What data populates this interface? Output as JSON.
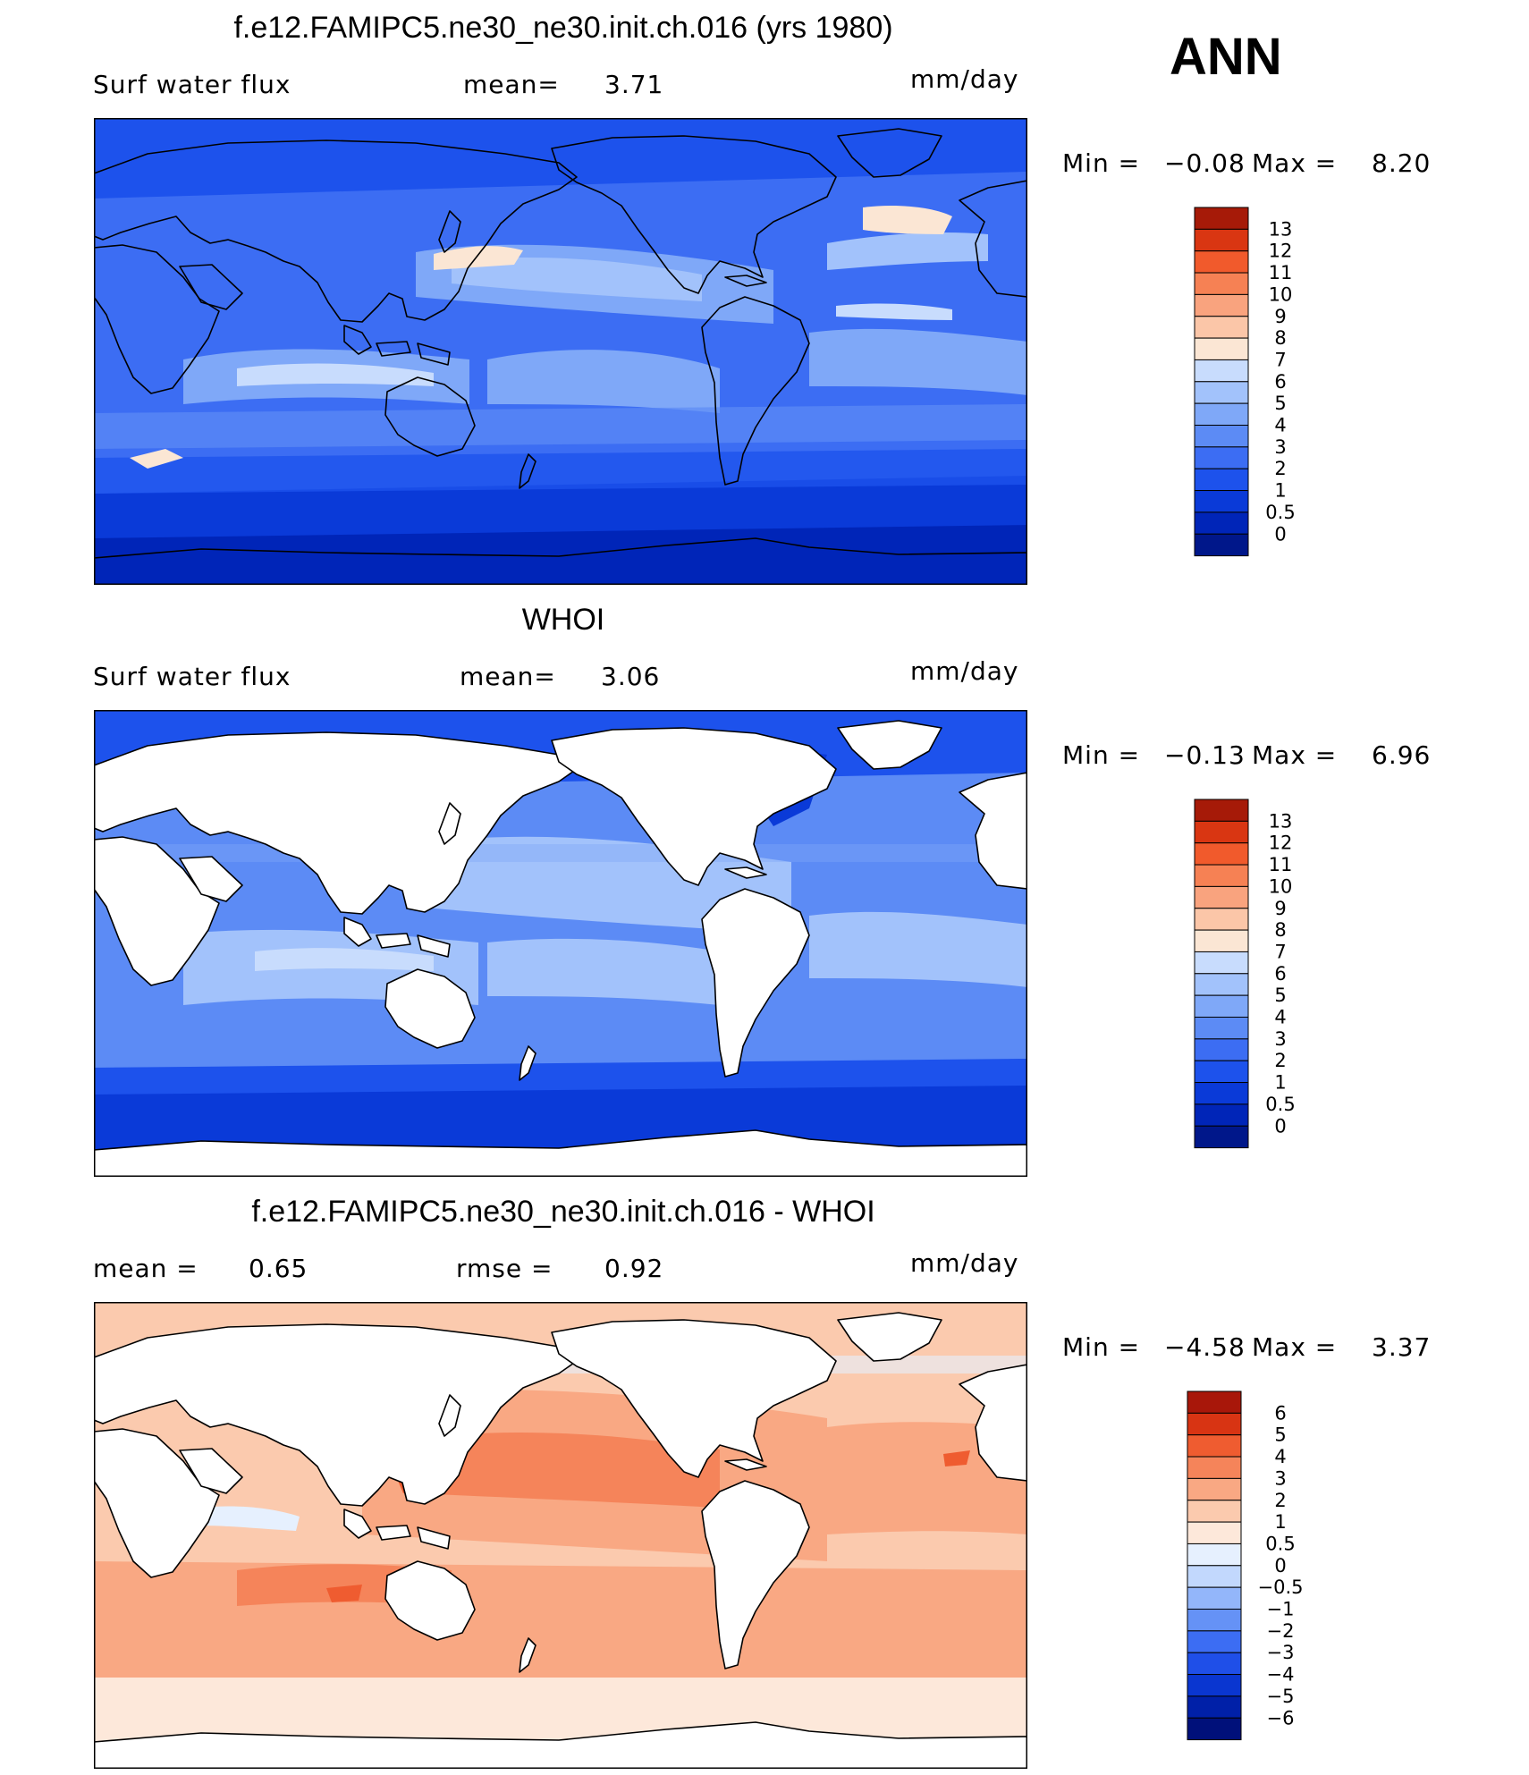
{
  "season": "ANN",
  "colors": {
    "blue_scale": [
      "#00178a",
      "#0025b8",
      "#0a3ad8",
      "#1d52ec",
      "#3c6df3",
      "#5c8bf5",
      "#7fa8f8",
      "#a2c2fb",
      "#c8dcfd",
      "#fbe6d4",
      "#fbc6a8",
      "#f9a37e",
      "#f68154",
      "#f15a2c",
      "#d93612",
      "#a61a08",
      "#6e0606"
    ],
    "diff_scale": [
      "#00107a",
      "#0020a8",
      "#0a36d0",
      "#1f4fe8",
      "#3c6df3",
      "#6592f6",
      "#93b6fa",
      "#c2d8fd",
      "#e6f0fe",
      "#fde8da",
      "#fbcaae",
      "#f9a883",
      "#f5845a",
      "#ef5c30",
      "#d83413",
      "#a8170a",
      "#6b0404"
    ],
    "land": "#ffffff",
    "coast": "#000000"
  },
  "panels": [
    {
      "title": "f.e12.FAMIPC5.ne30_ne30.init.ch.016 (yrs 1980)",
      "left_label": "Surf water flux",
      "mean_label": "mean=",
      "mean_value": "3.71",
      "units": "mm/day",
      "min_label": "Min =",
      "min_value": "−0.08",
      "max_label": "Max =",
      "max_value": "8.20",
      "land_masked": false,
      "colorbar_labels": [
        "13",
        "12",
        "11",
        "10",
        "9",
        "8",
        "7",
        "6",
        "5",
        "4",
        "3",
        "2",
        "1",
        "0.5",
        "0"
      ]
    },
    {
      "title": "WHOI",
      "left_label": "Surf water flux",
      "mean_label": "mean=",
      "mean_value": "3.06",
      "units": "mm/day",
      "min_label": "Min =",
      "min_value": "−0.13",
      "max_label": "Max =",
      "max_value": "6.96",
      "land_masked": true,
      "colorbar_labels": [
        "13",
        "12",
        "11",
        "10",
        "9",
        "8",
        "7",
        "6",
        "5",
        "4",
        "3",
        "2",
        "1",
        "0.5",
        "0"
      ]
    },
    {
      "title": "f.e12.FAMIPC5.ne30_ne30.init.ch.016 - WHOI",
      "left_label": "mean =",
      "left_value": "0.65",
      "mean_label": "rmse =",
      "mean_value": "0.92",
      "units": "mm/day",
      "min_label": "Min =",
      "min_value": "−4.58",
      "max_label": "Max =",
      "max_value": "3.37",
      "land_masked": true,
      "colorbar_labels": [
        "6",
        "5",
        "4",
        "3",
        "2",
        "1",
        "0.5",
        "0",
        "−0.5",
        "−1",
        "−2",
        "−3",
        "−4",
        "−5",
        "−6"
      ]
    }
  ]
}
